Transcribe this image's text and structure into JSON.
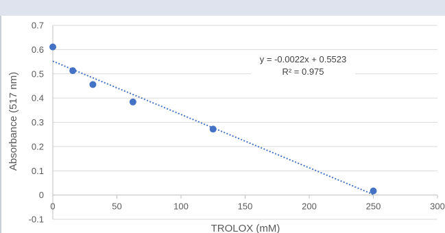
{
  "chart_data": {
    "type": "scatter",
    "title": "",
    "xlabel": "TROLOX (mM)",
    "ylabel": "Absorbance (517 nm)",
    "xlim": [
      0,
      300
    ],
    "ylim": [
      -0.1,
      0.7
    ],
    "x_ticks": [
      0,
      50,
      100,
      150,
      200,
      250,
      300
    ],
    "y_ticks": [
      -0.1,
      0,
      0.1,
      0.2,
      0.3,
      0.4,
      0.5,
      0.6,
      0.7
    ],
    "x_tick_labels": [
      "0",
      "50",
      "100",
      "150",
      "200",
      "250",
      "300"
    ],
    "y_tick_labels": [
      "-0.1",
      "0",
      "0.1",
      "0.2",
      "0.3",
      "0.4",
      "0.5",
      "0.6",
      "0.7"
    ],
    "grid": true,
    "series": [
      {
        "x": [
          0,
          15.6,
          31.25,
          62.5,
          125,
          250
        ],
        "y": [
          0.611,
          0.513,
          0.456,
          0.384,
          0.272,
          0.017
        ]
      }
    ],
    "trendline": {
      "type": "linear",
      "slope": -0.0022,
      "intercept": 0.5523,
      "x_range": [
        0,
        250
      ],
      "equation": "y = -0.0022x + 0.5523",
      "r_squared": "R² = 0.975"
    },
    "colors": {
      "marker": "#4472c4",
      "trendline": "#4472c4",
      "grid": "#d9d9d9",
      "axis": "#bfbfbf"
    }
  }
}
